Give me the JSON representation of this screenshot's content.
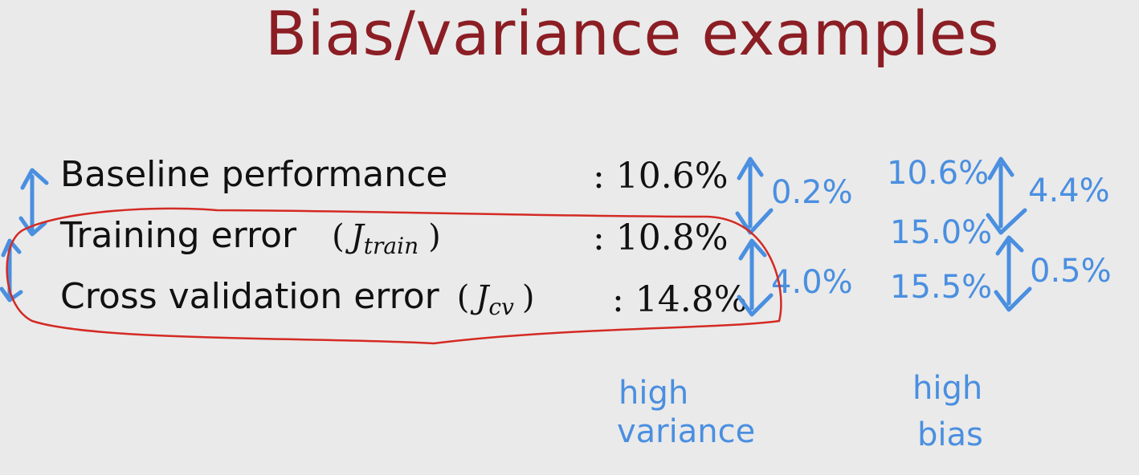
{
  "title": "Bias/variance examples",
  "rows": [
    {
      "label": "Baseline performance",
      "value": ": 10.6%"
    },
    {
      "label": "Training error",
      "math": "J",
      "math_sub": "train",
      "value": ": 10.8%"
    },
    {
      "label": "Cross validation error",
      "math": "J",
      "math_sub": "cv",
      "value": ": 14.8%"
    }
  ],
  "annotations": {
    "example1": {
      "gap_top": "0.2%",
      "gap_bottom": "4.0%",
      "label_line1": "high",
      "label_line2": "variance"
    },
    "example2": {
      "values": [
        "10.6%",
        "15.0%",
        "15.5%"
      ],
      "gap_top": "4.4%",
      "gap_bottom": "0.5%",
      "label_line1": "high",
      "label_line2": "bias"
    }
  },
  "colors": {
    "title": "#8b1e24",
    "ink_blue": "#4a8fe0",
    "ink_red": "#d42a24",
    "background": "#eaeaea"
  }
}
